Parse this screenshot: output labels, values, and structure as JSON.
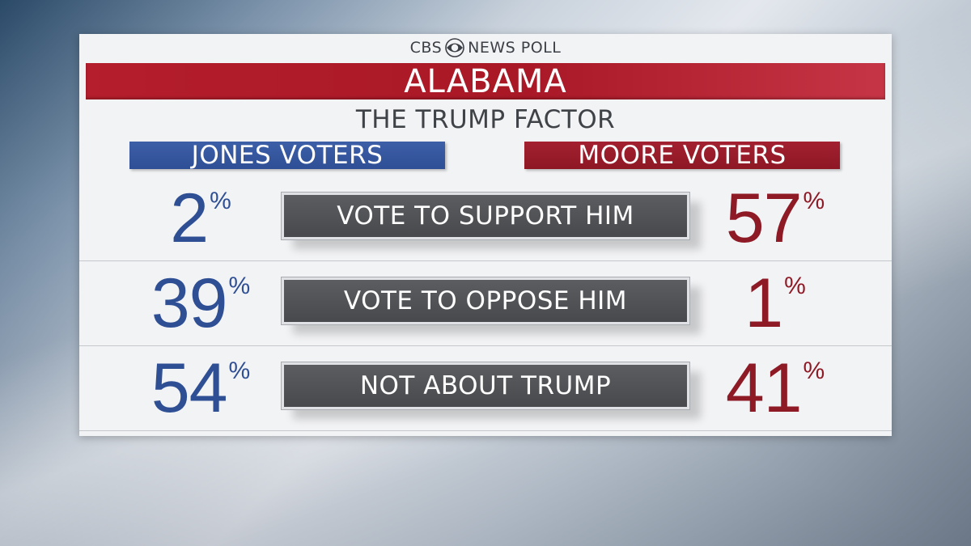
{
  "header": {
    "brand_left": "CBS",
    "brand_right": "NEWS POLL",
    "brand_icon": "cbs-eye-icon",
    "state": "ALABAMA",
    "subtitle": "THE TRUMP FACTOR"
  },
  "columns": {
    "jones": "JONES VOTERS",
    "moore": "MOORE VOTERS"
  },
  "percent_sign": "%",
  "colors": {
    "jones": "#2f4f95",
    "moore": "#8e1a26",
    "state_bar": "#b51e2c",
    "label_box": "#4f5054"
  },
  "chart_data": {
    "type": "table",
    "title": "THE TRUMP FACTOR",
    "columns": [
      "JONES VOTERS",
      "MOORE VOTERS"
    ],
    "rows": [
      {
        "label": "VOTE TO SUPPORT HIM",
        "jones": "2",
        "moore": "57"
      },
      {
        "label": "VOTE TO OPPOSE HIM",
        "jones": "39",
        "moore": "1"
      },
      {
        "label": "NOT ABOUT TRUMP",
        "jones": "54",
        "moore": "41"
      }
    ]
  }
}
